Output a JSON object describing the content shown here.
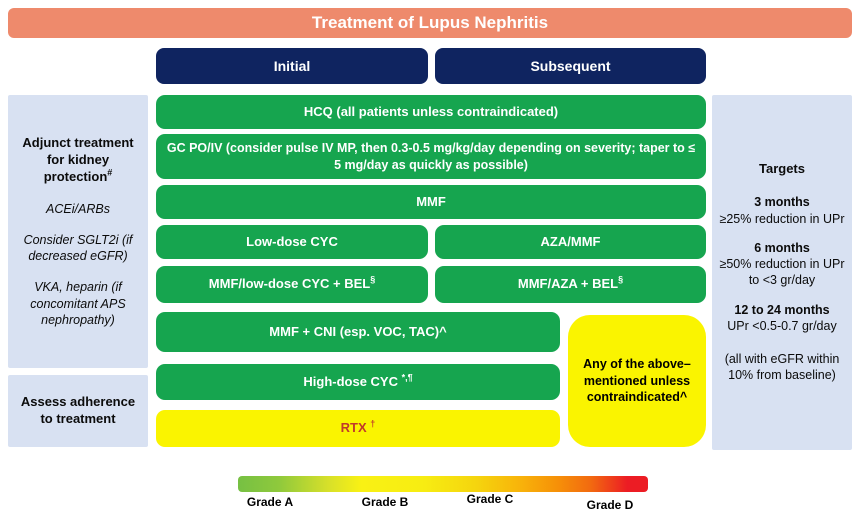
{
  "header": {
    "title": "Treatment of Lupus Nephritis"
  },
  "columns": {
    "initial": "Initial",
    "subsequent": "Subsequent"
  },
  "left_panel": {
    "adjunct": {
      "title": "Adjunct treatment for kidney protection",
      "title_sup": "#",
      "items": [
        "ACEi/ARBs",
        "Consider SGLT2i (if decreased eGFR)",
        "VKA, heparin (if concomitant APS nephropathy)"
      ]
    },
    "adherence": "Assess adherence to treatment"
  },
  "treatments": {
    "hcq": "HCQ (all patients unless contraindicated)",
    "gc": "GC PO/IV (consider pulse IV MP, then 0.3-0.5 mg/kg/day depending on severity; taper to ≤ 5 mg/day as quickly as possible)",
    "mmf": "MMF",
    "low_dose_cyc": "Low-dose CYC",
    "aza_mmf": "AZA/MMF",
    "mmf_cyc_bel": {
      "text": "MMF/low-dose CYC + BEL",
      "sup": "§"
    },
    "mmf_aza_bel": {
      "text": "MMF/AZA + BEL",
      "sup": "§"
    },
    "mmf_cni": "MMF + CNI (esp. VOC, TAC)^",
    "high_dose_cyc": {
      "text": "High-dose CYC ",
      "sup": "*,¶"
    },
    "rtx": {
      "text": "RTX ",
      "sup": "†"
    },
    "any_above": "Any of the above–mentioned unless contraindicated^"
  },
  "targets": {
    "title": "Targets",
    "items": [
      {
        "period": "3 months",
        "goal": "≥25% reduction in UPr"
      },
      {
        "period": "6 months",
        "goal": "≥50% reduction in UPr to <3 gr/day"
      },
      {
        "period": "12 to 24 months",
        "goal": "UPr <0.5-0.7 gr/day"
      }
    ],
    "note": "(all with eGFR within 10% from baseline)"
  },
  "grades": {
    "labels": [
      "Grade A",
      "Grade B",
      "Grade C",
      "Grade D"
    ],
    "colors": [
      "#76C043",
      "#F7EC13",
      "#F7A609",
      "#EC1C24"
    ]
  },
  "colors": {
    "header_salmon": "#EE8A6C",
    "navy": "#0F2460",
    "green": "#16A54F",
    "yellow": "#FAF400",
    "panel_blue": "#D8E1F2",
    "rtx_text": "#C0392B"
  }
}
